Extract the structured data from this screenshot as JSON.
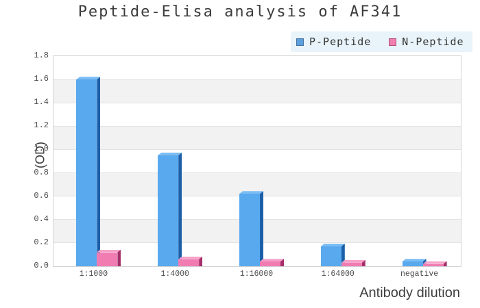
{
  "title": "Peptide-Elisa analysis of AF341",
  "legend": {
    "background": "#e9f4fa",
    "items": [
      {
        "label": "P-Peptide",
        "swatch": "#5b9fdd",
        "swatch_border": "#45719f"
      },
      {
        "label": "N-Peptide",
        "swatch": "#ee7fae",
        "swatch_border": "#b04c7c"
      }
    ]
  },
  "chart_data": {
    "type": "bar",
    "title": "Peptide-Elisa analysis of AF341",
    "categories": [
      "1:1000",
      "1:4000",
      "1:16000",
      "1:64000",
      "negative"
    ],
    "series": [
      {
        "name": "P-Peptide",
        "values": [
          1.6,
          0.95,
          0.62,
          0.17,
          0.04
        ],
        "color": "#58a9ee",
        "color_top": "#7cbdf3",
        "color_side": "#1c5fa8"
      },
      {
        "name": "N-Peptide",
        "values": [
          0.12,
          0.06,
          0.04,
          0.03,
          0.02
        ],
        "color": "#f07cb2",
        "color_top": "#f6a1c9",
        "color_side": "#a62e6b"
      }
    ],
    "xlabel": "Antibody dilution",
    "ylabel": "(OD)",
    "ylim": [
      0,
      1.8
    ],
    "ytick_step": 0.2,
    "grid": true,
    "band_color": "#f2f2f2",
    "gridline_color": "#e2e2e2",
    "legend_position": "top-right",
    "style": "3d-bars"
  }
}
